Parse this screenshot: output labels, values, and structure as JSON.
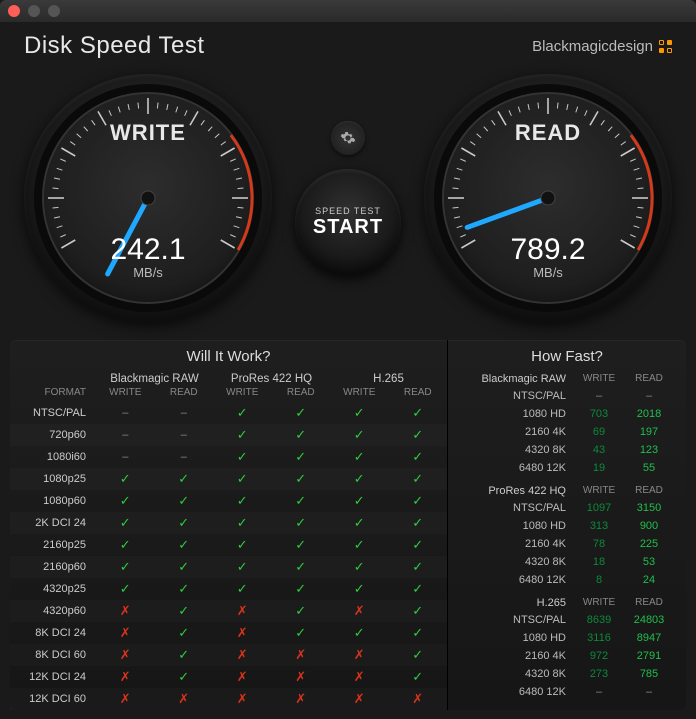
{
  "app": {
    "title": "Disk Speed Test",
    "brand": "Blackmagicdesign"
  },
  "gauges": {
    "write": {
      "label": "WRITE",
      "value": "242.1",
      "unit": "MB/s",
      "needle_angle_deg": -62,
      "needle_color": "#1fa8ff"
    },
    "read": {
      "label": "READ",
      "value": "789.2",
      "unit": "MB/s",
      "needle_angle_deg": -20,
      "needle_color": "#1fa8ff"
    },
    "red_arc_color": "#d13a1a",
    "tick_color": "#c8c8c8"
  },
  "start": {
    "line1": "SPEED TEST",
    "line2": "START"
  },
  "willItWork": {
    "title": "Will It Work?",
    "format_header": "FORMAT",
    "codec_headers": [
      "Blackmagic RAW",
      "ProRes 422 HQ",
      "H.265"
    ],
    "sub_headers": [
      "WRITE",
      "READ"
    ],
    "rows": [
      {
        "fmt": "NTSC/PAL",
        "cells": [
          "-",
          "-",
          "y",
          "y",
          "y",
          "y"
        ]
      },
      {
        "fmt": "720p60",
        "cells": [
          "-",
          "-",
          "y",
          "y",
          "y",
          "y"
        ]
      },
      {
        "fmt": "1080i60",
        "cells": [
          "-",
          "-",
          "y",
          "y",
          "y",
          "y"
        ]
      },
      {
        "fmt": "1080p25",
        "cells": [
          "y",
          "y",
          "y",
          "y",
          "y",
          "y"
        ]
      },
      {
        "fmt": "1080p60",
        "cells": [
          "y",
          "y",
          "y",
          "y",
          "y",
          "y"
        ]
      },
      {
        "fmt": "2K DCI 24",
        "cells": [
          "y",
          "y",
          "y",
          "y",
          "y",
          "y"
        ]
      },
      {
        "fmt": "2160p25",
        "cells": [
          "y",
          "y",
          "y",
          "y",
          "y",
          "y"
        ]
      },
      {
        "fmt": "2160p60",
        "cells": [
          "y",
          "y",
          "y",
          "y",
          "y",
          "y"
        ]
      },
      {
        "fmt": "4320p25",
        "cells": [
          "y",
          "y",
          "y",
          "y",
          "y",
          "y"
        ]
      },
      {
        "fmt": "4320p60",
        "cells": [
          "n",
          "y",
          "n",
          "y",
          "n",
          "y"
        ]
      },
      {
        "fmt": "8K DCI 24",
        "cells": [
          "n",
          "y",
          "n",
          "y",
          "y",
          "y"
        ]
      },
      {
        "fmt": "8K DCI 60",
        "cells": [
          "n",
          "y",
          "n",
          "n",
          "n",
          "y"
        ]
      },
      {
        "fmt": "12K DCI 24",
        "cells": [
          "n",
          "y",
          "n",
          "n",
          "n",
          "y"
        ]
      },
      {
        "fmt": "12K DCI 60",
        "cells": [
          "n",
          "n",
          "n",
          "n",
          "n",
          "n"
        ]
      }
    ]
  },
  "howFast": {
    "title": "How Fast?",
    "sub_headers": [
      "WRITE",
      "READ"
    ],
    "groups": [
      {
        "name": "Blackmagic RAW",
        "rows": [
          {
            "fmt": "NTSC/PAL",
            "w": "-",
            "r": "-"
          },
          {
            "fmt": "1080 HD",
            "w": "703",
            "r": "2018"
          },
          {
            "fmt": "2160 4K",
            "w": "69",
            "r": "197"
          },
          {
            "fmt": "4320 8K",
            "w": "43",
            "r": "123"
          },
          {
            "fmt": "6480 12K",
            "w": "19",
            "r": "55"
          }
        ]
      },
      {
        "name": "ProRes 422 HQ",
        "rows": [
          {
            "fmt": "NTSC/PAL",
            "w": "1097",
            "r": "3150"
          },
          {
            "fmt": "1080 HD",
            "w": "313",
            "r": "900"
          },
          {
            "fmt": "2160 4K",
            "w": "78",
            "r": "225"
          },
          {
            "fmt": "4320 8K",
            "w": "18",
            "r": "53"
          },
          {
            "fmt": "6480 12K",
            "w": "8",
            "r": "24"
          }
        ]
      },
      {
        "name": "H.265",
        "rows": [
          {
            "fmt": "NTSC/PAL",
            "w": "8639",
            "r": "24803"
          },
          {
            "fmt": "1080 HD",
            "w": "3116",
            "r": "8947"
          },
          {
            "fmt": "2160 4K",
            "w": "972",
            "r": "2791"
          },
          {
            "fmt": "4320 8K",
            "w": "273",
            "r": "785"
          },
          {
            "fmt": "6480 12K",
            "w": "-",
            "r": "-"
          }
        ]
      }
    ],
    "write_color": "#0b8a3a",
    "read_color": "#1fbf4b"
  }
}
